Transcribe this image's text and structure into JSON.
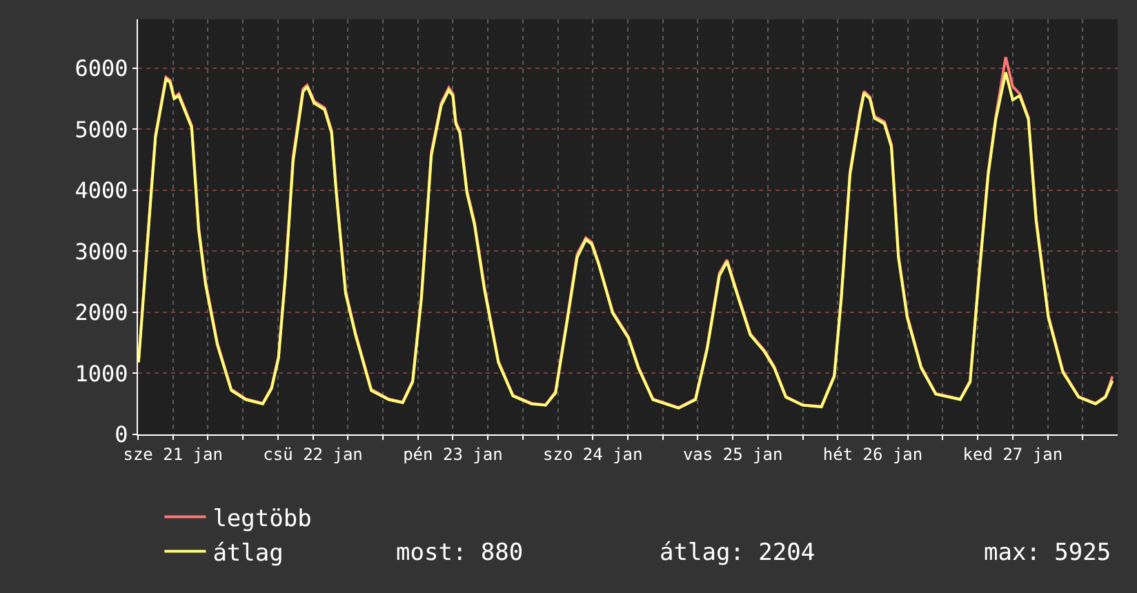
{
  "chart_data": {
    "type": "line",
    "x": [
      "--01-21T06:06",
      "--01-21T08:06",
      "--01-21T09:00",
      "--01-21T10:48",
      "--01-21T11:30",
      "--01-21T12:12",
      "--01-21T13:00",
      "--01-21T15:12",
      "--01-21T16:24",
      "--01-21T17:36",
      "--01-21T19:36",
      "--01-21T22:00",
      "--01-22T00:30",
      "--01-22T03:24",
      "--01-22T04:54",
      "--01-22T06:06",
      "--01-22T07:18",
      "--01-22T08:36",
      "--01-22T10:18",
      "--01-22T11:00",
      "--01-22T12:12",
      "--01-22T14:00",
      "--01-22T15:12",
      "--01-22T16:00",
      "--01-22T17:36",
      "--01-22T19:18",
      "--01-22T22:00",
      "--01-23T01:00",
      "--01-23T03:24",
      "--01-23T05:06",
      "--01-23T06:36",
      "--01-23T08:18",
      "--01-23T10:00",
      "--01-23T11:18",
      "--01-23T12:00",
      "--01-23T12:30",
      "--01-23T13:12",
      "--01-23T14:24",
      "--01-23T15:42",
      "--01-23T17:24",
      "--01-23T19:48",
      "--01-23T22:18",
      "--01-24T01:30",
      "--01-24T03:54",
      "--01-24T05:36",
      "--01-24T07:36",
      "--01-24T09:18",
      "--01-24T10:48",
      "--01-24T11:48",
      "--01-24T13:00",
      "--01-24T15:24",
      "--01-24T18:06",
      "--01-24T19:48",
      "--01-24T22:18",
      "--01-25T02:42",
      "--01-25T05:36",
      "--01-25T07:36",
      "--01-25T09:42",
      "--01-25T11:00",
      "--01-25T13:00",
      "--01-25T15:00",
      "--01-25T17:24",
      "--01-25T19:06",
      "--01-25T21:06",
      "--01-26T00:00",
      "--01-26T03:12",
      "--01-26T05:24",
      "--01-26T06:36",
      "--01-26T08:06",
      "--01-26T09:48",
      "--01-26T10:30",
      "--01-26T11:30",
      "--01-26T12:18",
      "--01-26T14:00",
      "--01-26T15:12",
      "--01-26T16:24",
      "--01-26T17:54",
      "--01-26T20:18",
      "--01-26T22:48",
      "--01-27T03:00",
      "--01-27T04:42",
      "--01-27T06:06",
      "--01-27T07:48",
      "--01-27T09:06",
      "--01-27T10:48",
      "--01-27T12:00",
      "--01-27T13:12",
      "--01-27T14:42",
      "--01-27T16:00",
      "--01-27T18:06",
      "--01-27T20:36",
      "--01-27T23:18",
      "--01-28T02:12",
      "--01-28T03:54",
      "--01-28T05:06"
    ],
    "series": [
      {
        "name": "legtöbb",
        "color": "#ff7777",
        "values": [
          1200,
          3800,
          4900,
          5850,
          5800,
          5520,
          5580,
          5060,
          3400,
          2500,
          1500,
          740,
          580,
          510,
          770,
          1280,
          2650,
          4550,
          5660,
          5720,
          5460,
          5350,
          4980,
          4000,
          2350,
          1660,
          740,
          580,
          530,
          880,
          2260,
          4620,
          5430,
          5680,
          5580,
          5120,
          4970,
          4000,
          3480,
          2420,
          1200,
          640,
          510,
          480,
          700,
          1900,
          2950,
          3220,
          3150,
          2810,
          2010,
          1600,
          1110,
          580,
          440,
          580,
          1420,
          2640,
          2860,
          2250,
          1650,
          1380,
          1110,
          620,
          480,
          460,
          970,
          2260,
          4300,
          5300,
          5620,
          5530,
          5210,
          5120,
          4750,
          2940,
          1950,
          1110,
          670,
          580,
          880,
          2490,
          4300,
          5200,
          6180,
          5700,
          5580,
          5190,
          3560,
          1950,
          1040,
          620,
          510,
          620,
          950
        ]
      },
      {
        "name": "átlag",
        "color": "#ffff77",
        "values": [
          1180,
          3740,
          4870,
          5820,
          5770,
          5500,
          5550,
          5030,
          3350,
          2450,
          1470,
          720,
          570,
          500,
          750,
          1250,
          2600,
          4480,
          5610,
          5700,
          5430,
          5320,
          4940,
          3960,
          2310,
          1630,
          720,
          570,
          520,
          860,
          2220,
          4570,
          5390,
          5640,
          5550,
          5090,
          4940,
          3960,
          3440,
          2380,
          1180,
          630,
          500,
          480,
          680,
          1860,
          2900,
          3190,
          3120,
          2790,
          1990,
          1580,
          1090,
          570,
          430,
          570,
          1400,
          2600,
          2830,
          2220,
          1630,
          1360,
          1090,
          610,
          480,
          450,
          950,
          2220,
          4260,
          5250,
          5590,
          5500,
          5180,
          5090,
          4710,
          2900,
          1920,
          1090,
          660,
          570,
          860,
          2450,
          4260,
          5160,
          5930,
          5480,
          5550,
          5160,
          3510,
          1920,
          1020,
          610,
          500,
          610,
          880
        ]
      }
    ],
    "xlim": [
      "--01-21T06:00",
      "--01-28T06:00"
    ],
    "xticks": [
      {
        "value": "--01-21T06:00",
        "label": null
      },
      {
        "value": "--01-21T12:00",
        "label": "sze 21 jan"
      },
      {
        "value": "--01-21T18:00",
        "label": null
      },
      {
        "value": "--01-22T00:00",
        "label": null
      },
      {
        "value": "--01-22T06:00",
        "label": null
      },
      {
        "value": "--01-22T12:00",
        "label": "csü 22 jan"
      },
      {
        "value": "--01-22T18:00",
        "label": null
      },
      {
        "value": "--01-23T00:00",
        "label": null
      },
      {
        "value": "--01-23T06:00",
        "label": null
      },
      {
        "value": "--01-23T12:00",
        "label": "pén 23 jan"
      },
      {
        "value": "--01-23T18:00",
        "label": null
      },
      {
        "value": "--01-24T00:00",
        "label": null
      },
      {
        "value": "--01-24T06:00",
        "label": null
      },
      {
        "value": "--01-24T12:00",
        "label": "szo 24 jan"
      },
      {
        "value": "--01-24T18:00",
        "label": null
      },
      {
        "value": "--01-25T00:00",
        "label": null
      },
      {
        "value": "--01-25T06:00",
        "label": null
      },
      {
        "value": "--01-25T12:00",
        "label": "vas 25 jan"
      },
      {
        "value": "--01-25T18:00",
        "label": null
      },
      {
        "value": "--01-26T00:00",
        "label": null
      },
      {
        "value": "--01-26T06:00",
        "label": null
      },
      {
        "value": "--01-26T12:00",
        "label": "hét 26 jan"
      },
      {
        "value": "--01-26T18:00",
        "label": null
      },
      {
        "value": "--01-27T00:00",
        "label": null
      },
      {
        "value": "--01-27T06:00",
        "label": null
      },
      {
        "value": "--01-27T12:00",
        "label": "ked 27 jan"
      },
      {
        "value": "--01-27T18:00",
        "label": null
      },
      {
        "value": "--01-28T00:00",
        "label": null
      }
    ],
    "ylim": [
      0,
      6800
    ],
    "yticks": [
      0,
      1000,
      2000,
      3000,
      4000,
      5000,
      6000
    ],
    "grid": true,
    "legend": "bottom",
    "marker": "none",
    "line_style": "solid",
    "annotations": [
      "most: 880",
      "átlag: 2204",
      "max: 5925"
    ]
  }
}
